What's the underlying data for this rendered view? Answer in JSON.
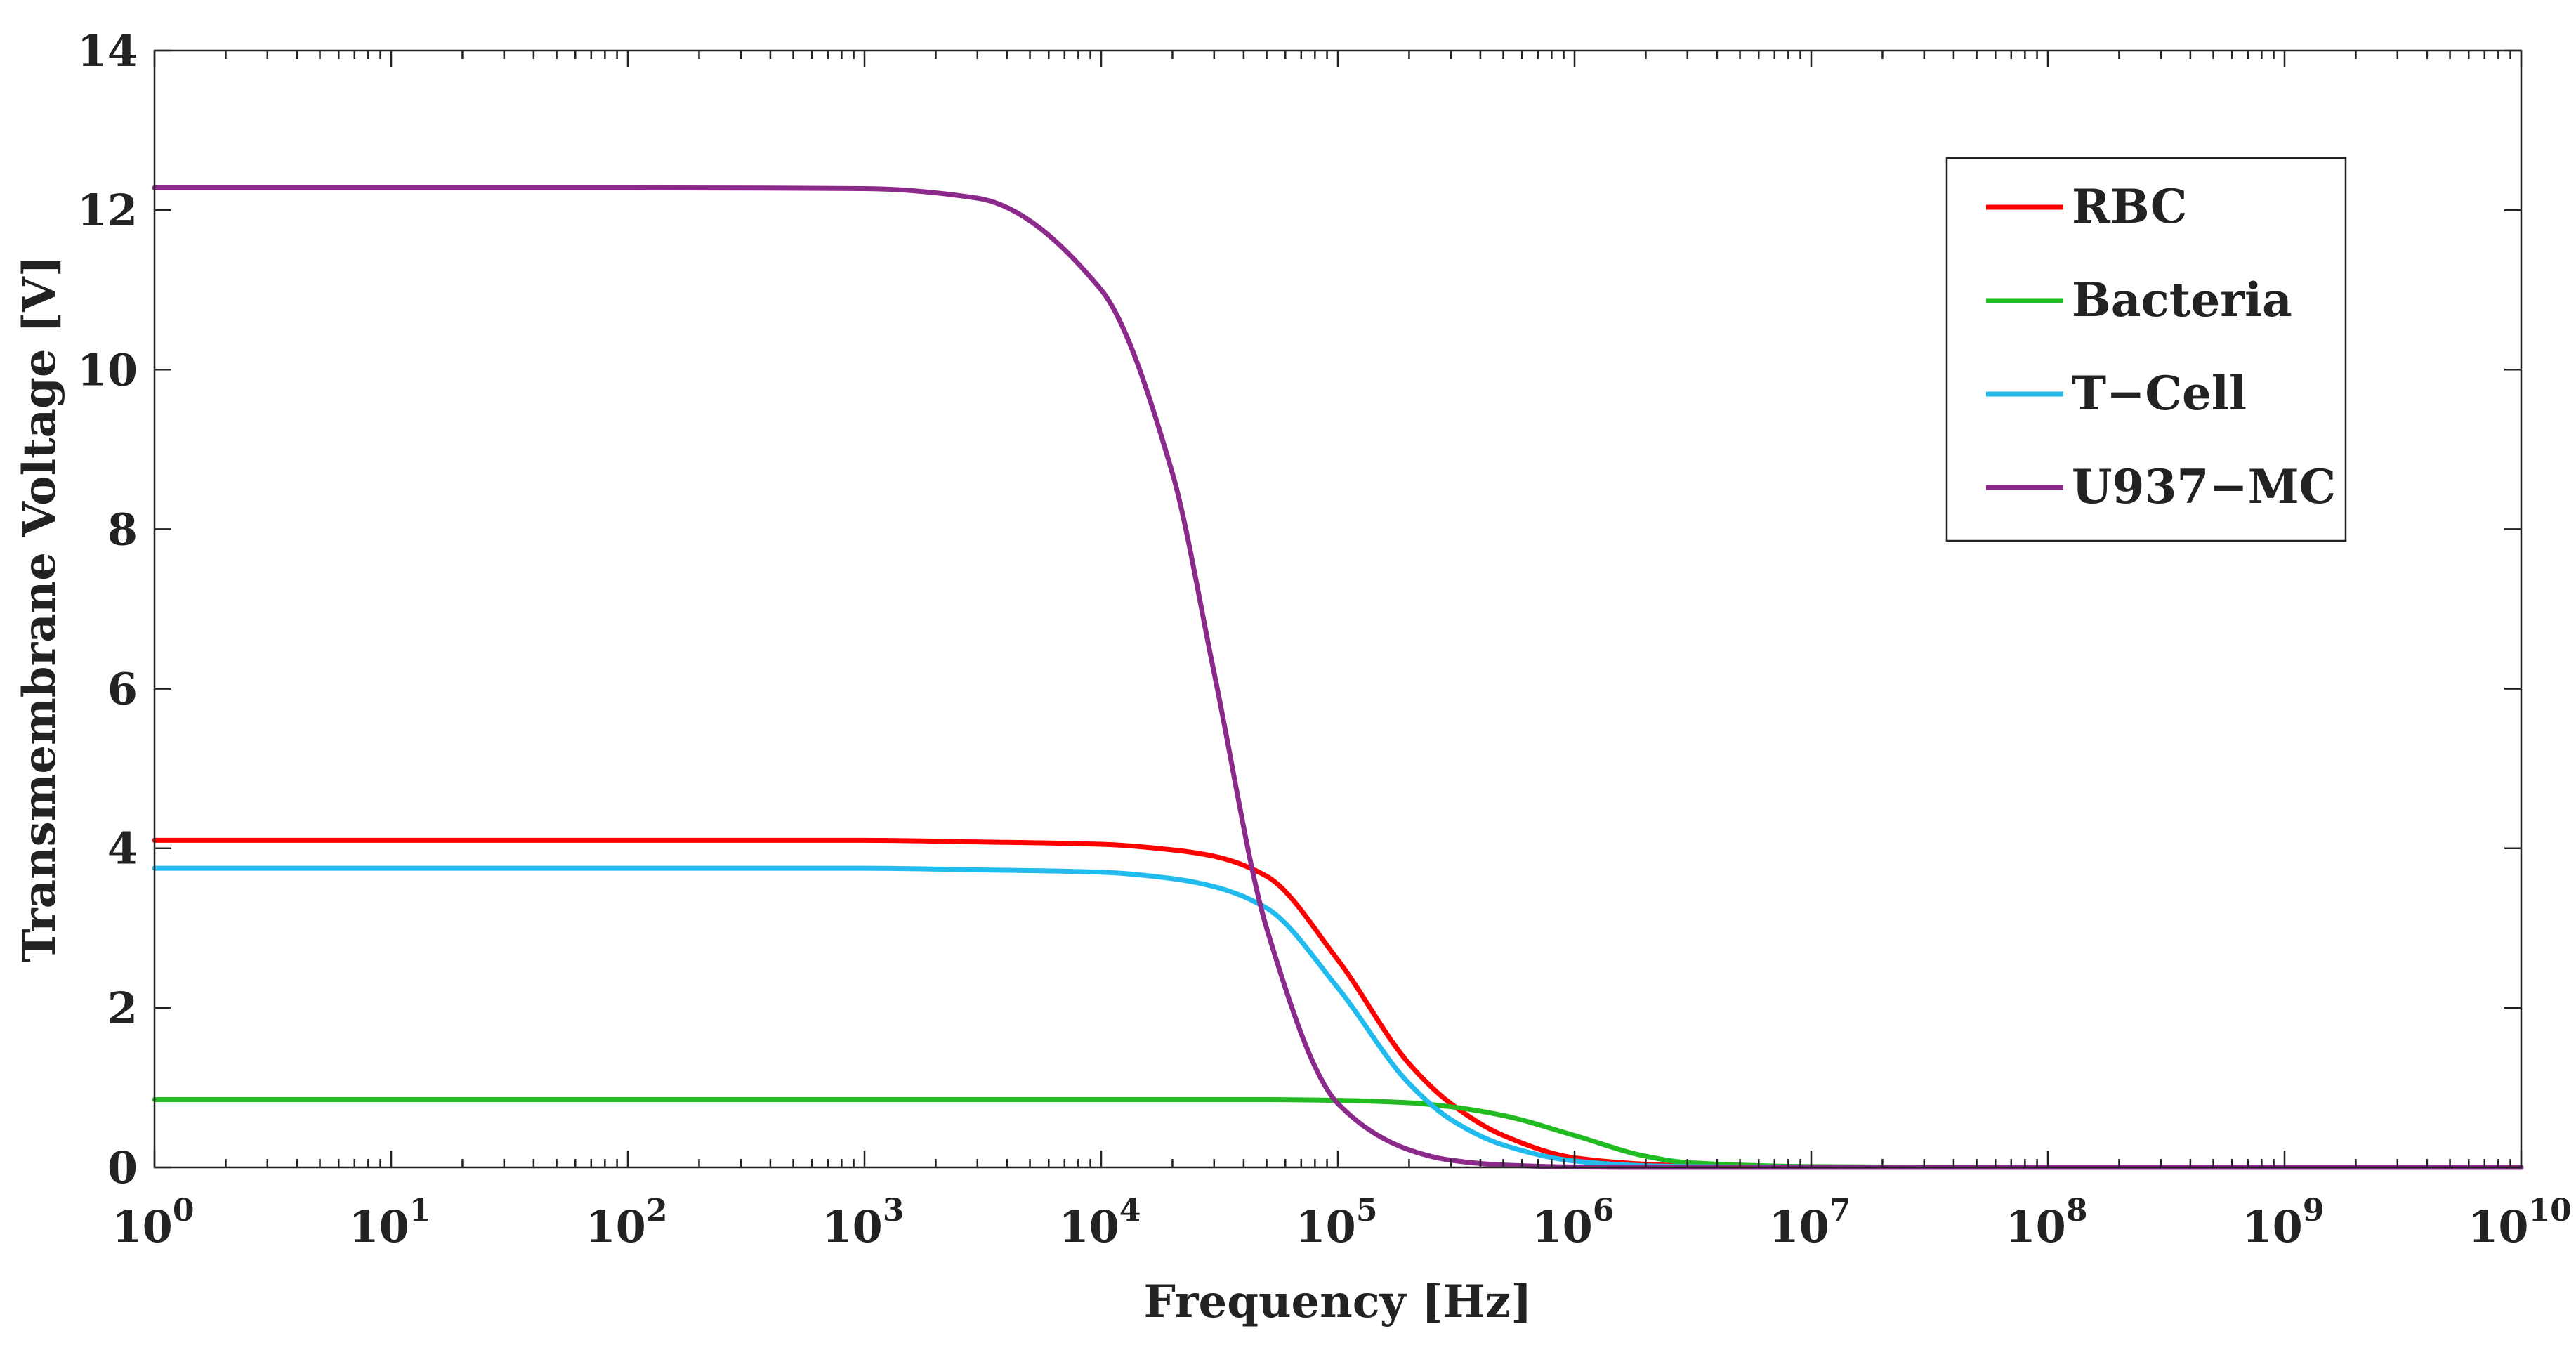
{
  "chart_data": {
    "type": "line",
    "title": "",
    "xlabel": "Frequency [Hz]",
    "ylabel": "Transmembrane Voltage [V]",
    "xscale": "log",
    "xlim": [
      1,
      10000000000
    ],
    "ylim": [
      0,
      14
    ],
    "x_ticks": [
      {
        "base": "10",
        "exp": "0"
      },
      {
        "base": "10",
        "exp": "1"
      },
      {
        "base": "10",
        "exp": "2"
      },
      {
        "base": "10",
        "exp": "3"
      },
      {
        "base": "10",
        "exp": "4"
      },
      {
        "base": "10",
        "exp": "5"
      },
      {
        "base": "10",
        "exp": "6"
      },
      {
        "base": "10",
        "exp": "7"
      },
      {
        "base": "10",
        "exp": "8"
      },
      {
        "base": "10",
        "exp": "9"
      },
      {
        "base": "10",
        "exp": "10"
      }
    ],
    "y_ticks": [
      "0",
      "2",
      "4",
      "6",
      "8",
      "10",
      "12",
      "14"
    ],
    "legend_position": "top-right",
    "grid": false,
    "x": [
      1,
      10,
      100,
      1000,
      3000,
      10000,
      20000,
      30000,
      50000,
      100000,
      200000,
      300000,
      500000,
      1000000,
      2000000,
      3000000,
      10000000,
      100000000,
      1000000000,
      10000000000
    ],
    "series": [
      {
        "name": "RBC",
        "color": "#ff0000",
        "values": [
          4.1,
          4.1,
          4.1,
          4.1,
          4.08,
          4.05,
          3.98,
          3.9,
          3.65,
          2.6,
          1.3,
          0.8,
          0.4,
          0.12,
          0.04,
          0.02,
          0.0,
          0.0,
          0.0,
          0.0
        ]
      },
      {
        "name": "Bacteria",
        "color": "#22bb22",
        "values": [
          0.85,
          0.85,
          0.85,
          0.85,
          0.85,
          0.85,
          0.85,
          0.85,
          0.85,
          0.84,
          0.81,
          0.76,
          0.65,
          0.4,
          0.14,
          0.06,
          0.01,
          0.0,
          0.0,
          0.0
        ]
      },
      {
        "name": "T−Cell",
        "color": "#22bbee",
        "values": [
          3.75,
          3.75,
          3.75,
          3.75,
          3.73,
          3.7,
          3.62,
          3.52,
          3.25,
          2.25,
          1.05,
          0.6,
          0.28,
          0.08,
          0.02,
          0.01,
          0.0,
          0.0,
          0.0,
          0.0
        ]
      },
      {
        "name": "U937−MC",
        "color": "#8b2a8b",
        "values": [
          12.28,
          12.28,
          12.28,
          12.27,
          12.15,
          11.0,
          8.7,
          6.2,
          3.0,
          0.8,
          0.22,
          0.09,
          0.03,
          0.005,
          0.0,
          0.0,
          0.0,
          0.0,
          0.0,
          0.0
        ]
      }
    ]
  }
}
